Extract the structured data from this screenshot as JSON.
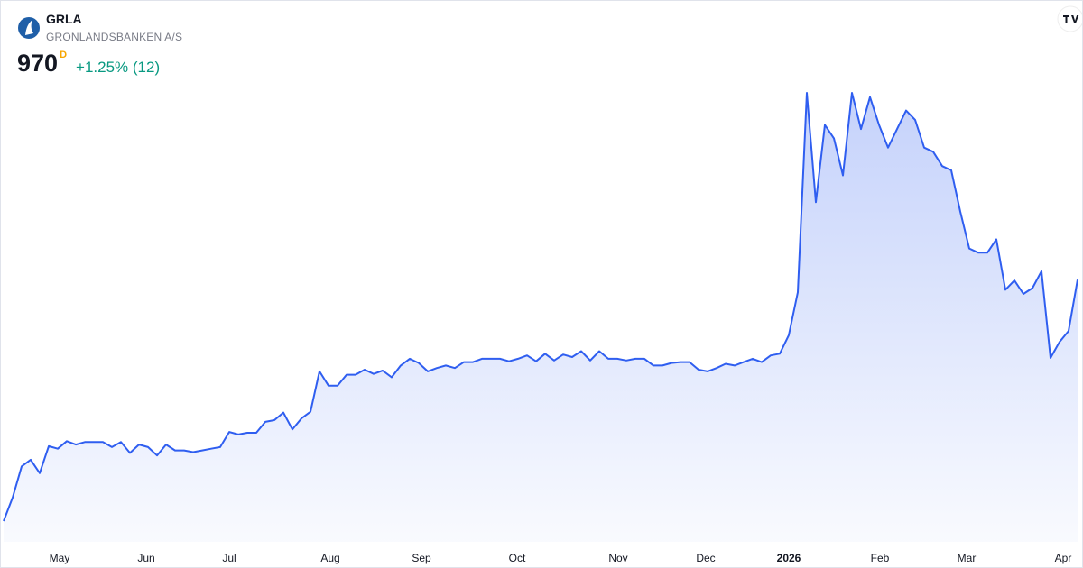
{
  "header": {
    "symbol": "GRLA",
    "name": "GRONLANDSBANKEN A/S",
    "price": 970,
    "price_flag": "D",
    "change": "+1.25% (12)"
  },
  "chart_data": {
    "type": "area",
    "color": "#2f5ef0",
    "values": [
      683,
      711,
      748,
      756,
      740,
      772,
      769,
      778,
      774,
      777,
      777,
      777,
      771,
      777,
      764,
      774,
      771,
      761,
      774,
      767,
      767,
      765,
      767,
      769,
      771,
      789,
      786,
      788,
      788,
      801,
      803,
      812,
      792,
      805,
      813,
      861,
      844,
      844,
      857,
      857,
      863,
      858,
      862,
      854,
      868,
      876,
      871,
      861,
      865,
      868,
      865,
      872,
      872,
      876,
      876,
      876,
      873,
      876,
      880,
      873,
      882,
      874,
      881,
      878,
      885,
      874,
      885,
      876,
      876,
      874,
      876,
      876,
      868,
      868,
      871,
      872,
      872,
      863,
      861,
      865,
      870,
      868,
      872,
      876,
      872,
      880,
      882,
      904,
      955,
      1192,
      1062,
      1154,
      1138,
      1094,
      1192,
      1149,
      1187,
      1154,
      1127,
      1149,
      1171,
      1160,
      1127,
      1122,
      1105,
      1100,
      1051,
      1007,
      1002,
      1002,
      1018,
      958,
      969,
      953,
      960,
      980,
      877,
      896,
      909,
      970
    ],
    "xticks": [
      {
        "value": 6.2,
        "label": "May"
      },
      {
        "value": 15.8,
        "label": "Jun"
      },
      {
        "value": 25,
        "label": "Jul"
      },
      {
        "value": 36.2,
        "label": "Aug"
      },
      {
        "value": 46.3,
        "label": "Sep"
      },
      {
        "value": 56.9,
        "label": "Oct"
      },
      {
        "value": 68.1,
        "label": "Nov"
      },
      {
        "value": 77.8,
        "label": "Dec"
      },
      {
        "value": 87,
        "label": "2026"
      },
      {
        "value": 97.1,
        "label": "Feb"
      },
      {
        "value": 106.7,
        "label": "Mar"
      },
      {
        "value": 117.4,
        "label": "Apr"
      }
    ]
  }
}
